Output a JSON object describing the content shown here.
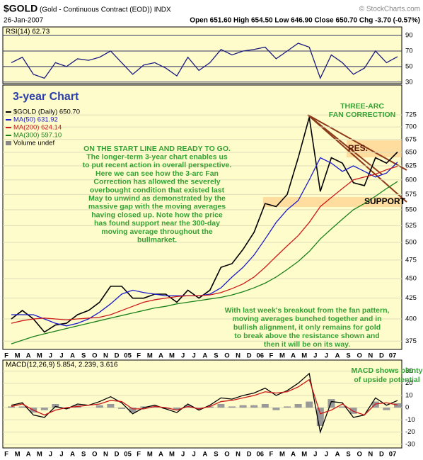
{
  "header": {
    "symbol": "$GOLD",
    "description": "(Gold - Continuous Contract (EOD)) INDX",
    "source": "© StockCharts.com",
    "date": "26-Jan-2007",
    "quote": "Open 651.60 High 654.50 Low 646.90 Close 650.70 Chg -3.70 (-0.57%)"
  },
  "chart_data": [
    {
      "type": "line",
      "title": "RSI(14) 62.73",
      "ylim": [
        28,
        101
      ],
      "yticks": [
        30,
        50,
        70,
        90
      ],
      "grid": true,
      "grid_color": "#333366",
      "series": [
        {
          "color": "#1a1a80",
          "values": [
            55,
            62,
            40,
            35,
            55,
            50,
            60,
            58,
            62,
            70,
            55,
            40,
            52,
            55,
            48,
            38,
            62,
            45,
            55,
            72,
            65,
            70,
            72,
            75,
            60,
            70,
            80,
            75,
            35,
            65,
            55,
            40,
            48,
            70,
            55,
            62.73
          ]
        }
      ]
    },
    {
      "type": "line",
      "log": true,
      "ylim": [
        366,
        791
      ],
      "yticks": [
        375,
        400,
        425,
        450,
        475,
        500,
        525,
        550,
        575,
        600,
        625,
        650,
        675,
        700,
        725
      ],
      "grid": true,
      "grid_color": "#deddb8",
      "categories": [
        "F",
        "M",
        "A",
        "M",
        "J",
        "J",
        "A",
        "S",
        "O",
        "N",
        "D",
        "05",
        "F",
        "M",
        "A",
        "M",
        "J",
        "J",
        "A",
        "S",
        "O",
        "N",
        "D",
        "06",
        "F",
        "M",
        "A",
        "M",
        "J",
        "J",
        "A",
        "S",
        "O",
        "N",
        "D",
        "07"
      ],
      "series": [
        {
          "name": "$GOLD (Daily) 650.70",
          "color": "#000000",
          "values": [
            400,
            410,
            400,
            385,
            393,
            395,
            405,
            410,
            420,
            440,
            440,
            425,
            425,
            430,
            430,
            420,
            435,
            425,
            435,
            465,
            470,
            490,
            515,
            560,
            555,
            575,
            640,
            720,
            580,
            640,
            630,
            595,
            590,
            640,
            630,
            650.7
          ]
        },
        {
          "name": "MA(50) 631.92",
          "color": "#1a1acc",
          "values": [
            405,
            405,
            405,
            400,
            395,
            392,
            395,
            400,
            408,
            418,
            430,
            435,
            432,
            430,
            428,
            428,
            428,
            428,
            430,
            438,
            452,
            465,
            482,
            505,
            530,
            550,
            565,
            600,
            640,
            630,
            615,
            625,
            615,
            605,
            612,
            631.92
          ]
        },
        {
          "name": "MA(200) 624.14",
          "color": "#cc1a1a",
          "values": [
            395,
            398,
            400,
            401,
            400,
            399,
            400,
            401,
            402,
            405,
            410,
            415,
            420,
            423,
            425,
            427,
            428,
            428,
            429,
            432,
            437,
            443,
            452,
            465,
            480,
            495,
            510,
            530,
            555,
            570,
            585,
            600,
            605,
            610,
            618,
            624.14
          ]
        },
        {
          "name": "MA(300) 597.10",
          "color": "#1a801a",
          "values": [
            372,
            376,
            380,
            383,
            386,
            389,
            392,
            395,
            398,
            401,
            404,
            407,
            410,
            413,
            415,
            418,
            420,
            422,
            424,
            426,
            429,
            433,
            438,
            444,
            452,
            462,
            473,
            487,
            505,
            520,
            535,
            550,
            560,
            572,
            585,
            597.1
          ]
        }
      ],
      "legend_note": "Volume undef",
      "annotations": [
        {
          "text": [
            "3-year Chart"
          ]
        },
        {
          "text": [
            "THREE-ARC",
            "FAN CORRECTION"
          ]
        },
        {
          "text": [
            "RES."
          ]
        },
        {
          "text": [
            "SUPPORT"
          ]
        },
        {
          "text": [
            "ON THE START LINE AND READY TO GO.",
            "The longer-term 3-year chart enables us",
            "to put recent action in overall perspective.",
            "Here we can see how the 3-arc Fan",
            "Correction has allowed the severely",
            "overbought condition that existed last",
            "May to unwind as demonstrated by the",
            "massive gap with the moving averages",
            "having closed up. Note how the price",
            "has found support near the 300-day",
            "moving average throughout the",
            "bullmarket."
          ]
        },
        {
          "text": [
            "With last week's breakout from the fan pattern,",
            "moving averages bunched together and in",
            "bullish alignment, it only remains for gold",
            "to break above the resistance shown and",
            "then it will be on its way."
          ]
        }
      ]
    },
    {
      "type": "line",
      "title": "MACD(12,26,9) 5.854, 2.239, 3.616",
      "ylim": [
        -33,
        39
      ],
      "yticks": [
        30,
        20,
        10,
        0,
        -10,
        -20,
        -30
      ],
      "grid": true,
      "grid_color": "#deddb8",
      "categories": [
        "F",
        "M",
        "A",
        "M",
        "J",
        "J",
        "A",
        "S",
        "O",
        "N",
        "D",
        "05",
        "F",
        "M",
        "A",
        "M",
        "J",
        "J",
        "A",
        "S",
        "O",
        "N",
        "D",
        "06",
        "F",
        "M",
        "A",
        "M",
        "J",
        "J",
        "A",
        "S",
        "O",
        "N",
        "D",
        "07"
      ],
      "series": [
        {
          "color": "#999999",
          "style": "bar",
          "values": [
            1,
            1,
            -4,
            -2,
            3,
            -1,
            2,
            0,
            2,
            3,
            -1,
            -4,
            1,
            1,
            -1,
            -2,
            2,
            -1,
            1,
            3,
            1,
            2,
            2,
            3,
            -2,
            1,
            3,
            5,
            -15,
            7,
            1,
            -5,
            0,
            5,
            -2,
            3.616
          ]
        },
        {
          "color": "#000000",
          "values": [
            2,
            4,
            -6,
            -8,
            1,
            -1,
            3,
            2,
            5,
            9,
            4,
            -5,
            0,
            2,
            -1,
            -4,
            3,
            -2,
            2,
            8,
            7,
            10,
            12,
            16,
            10,
            14,
            20,
            28,
            -20,
            5,
            4,
            -8,
            -6,
            8,
            2,
            5.854
          ]
        },
        {
          "color": "#cc1a1a",
          "values": [
            1,
            3,
            -2,
            -6,
            -2,
            0,
            1,
            2,
            3,
            6,
            5,
            -1,
            -1,
            1,
            0,
            -2,
            1,
            -1,
            1,
            5,
            6,
            8,
            10,
            13,
            12,
            13,
            17,
            23,
            -5,
            -2,
            3,
            -3,
            -6,
            3,
            4,
            2.239
          ]
        }
      ],
      "annotations": [
        {
          "text": [
            "MACD shows plenty",
            "of upside potential"
          ]
        }
      ]
    }
  ]
}
